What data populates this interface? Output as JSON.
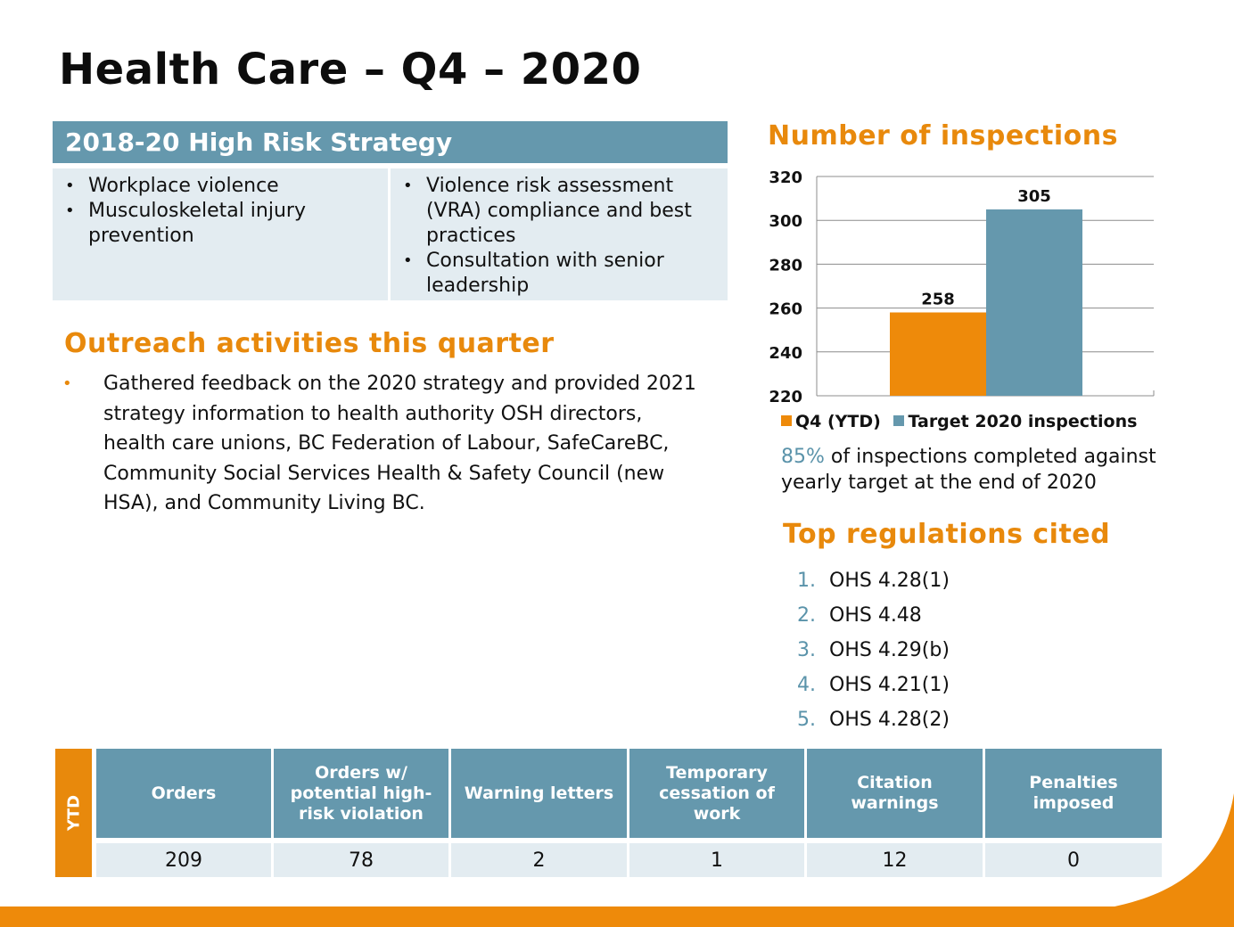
{
  "page": {
    "title": "Health Care – Q4 – 2020"
  },
  "strategy": {
    "header": "2018-20 High Risk Strategy",
    "left_items": [
      "Workplace violence",
      "Musculoskeletal injury prevention"
    ],
    "right_items": [
      "Violence risk assessment (VRA) compliance and best practices",
      "Consultation with senior leadership"
    ]
  },
  "outreach": {
    "heading": "Outreach activities this quarter",
    "bullet_text": "Gathered feedback on the 2020 strategy and provided 2021 strategy information to health authority OSH directors, health care unions, BC Federation of Labour, SafeCareBC, Community Social Services Health & Safety Council (new HSA), and Community Living BC."
  },
  "inspections": {
    "heading": "Number of inspections",
    "note_pct": "85%",
    "note_text": " of inspections completed against yearly target at the end of 2020"
  },
  "chart_data": {
    "type": "bar",
    "title": "Number of inspections",
    "categories": [
      "Q4 (YTD)",
      "Target 2020 inspections"
    ],
    "values": [
      258,
      305
    ],
    "series": [
      {
        "name": "Q4 (YTD)",
        "value": 258,
        "color": "#ee8a0a"
      },
      {
        "name": "Target 2020 inspections",
        "value": 305,
        "color": "#6598ad"
      }
    ],
    "ylim": [
      220,
      320
    ],
    "yticks": [
      320,
      300,
      280,
      260,
      240,
      220
    ],
    "grid": true,
    "legend": "bottom",
    "xlabel": "",
    "ylabel": ""
  },
  "regulations": {
    "heading": "Top regulations cited",
    "items": [
      {
        "num": "1.",
        "label": "OHS 4.28(1)"
      },
      {
        "num": "2.",
        "label": "OHS 4.48"
      },
      {
        "num": "3.",
        "label": "OHS 4.29(b)"
      },
      {
        "num": "4.",
        "label": "OHS 4.21(1)"
      },
      {
        "num": "5.",
        "label": "OHS 4.28(2)"
      }
    ]
  },
  "ytd_table": {
    "tab_label": "YTD",
    "headers": [
      "Orders",
      "Orders w/ potential high-risk violation",
      "Warning letters",
      "Temporary cessation of work",
      "Citation warnings",
      "Penalties imposed"
    ],
    "values": [
      "209",
      "78",
      "2",
      "1",
      "12",
      "0"
    ]
  },
  "colors": {
    "orange": "#e8890c",
    "teal": "#6598ad",
    "light_blue": "#e3ecf1"
  }
}
